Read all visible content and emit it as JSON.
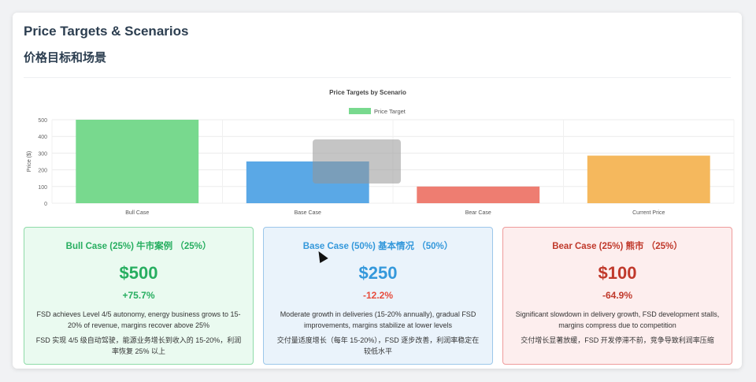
{
  "header": {
    "title_en": "Price Targets & Scenarios",
    "title_zh": "价格目标和场景"
  },
  "chart_data": {
    "type": "bar",
    "title": "Price Targets by Scenario",
    "legend": {
      "label": "Price Target",
      "placement": "top"
    },
    "ylabel": "Price ($)",
    "ylim": [
      0,
      500
    ],
    "yticks": [
      0,
      100,
      200,
      300,
      400,
      500
    ],
    "grid": true,
    "categories": [
      "Bull Case",
      "Base Case",
      "Bear Case",
      "Current Price"
    ],
    "values": [
      500,
      250,
      100,
      285
    ],
    "colors": [
      "#78d98e",
      "#5aa8e6",
      "#ee7d71",
      "#f5b85d"
    ]
  },
  "cards": [
    {
      "header": "Bull Case (25%) 牛市案例 （25%）",
      "price": "$500",
      "change": "+75.7%",
      "desc": "FSD achieves Level 4/5 autonomy, energy business grows to 15-20% of revenue, margins recover above 25%",
      "desc_zh": "FSD 实现 4/5 级自动驾驶，能源业务增长到收入的 15-20%，利润率恢复 25% 以上"
    },
    {
      "header": "Base Case (50%) 基本情况 （50%）",
      "price": "$250",
      "change": "-12.2%",
      "desc": "Moderate growth in deliveries (15-20% annually), gradual FSD improvements, margins stabilize at lower levels",
      "desc_zh": "交付量适度增长（每年 15-20%），FSD 逐步改善，利润率稳定在较低水平"
    },
    {
      "header": "Bear Case (25%) 熊市 （25%）",
      "price": "$100",
      "change": "-64.9%",
      "desc": "Significant slowdown in delivery growth, FSD development stalls, margins compress due to competition",
      "desc_zh": "交付增长显著放缓，FSD 开发停滞不前，竞争导致利润率压缩"
    }
  ]
}
